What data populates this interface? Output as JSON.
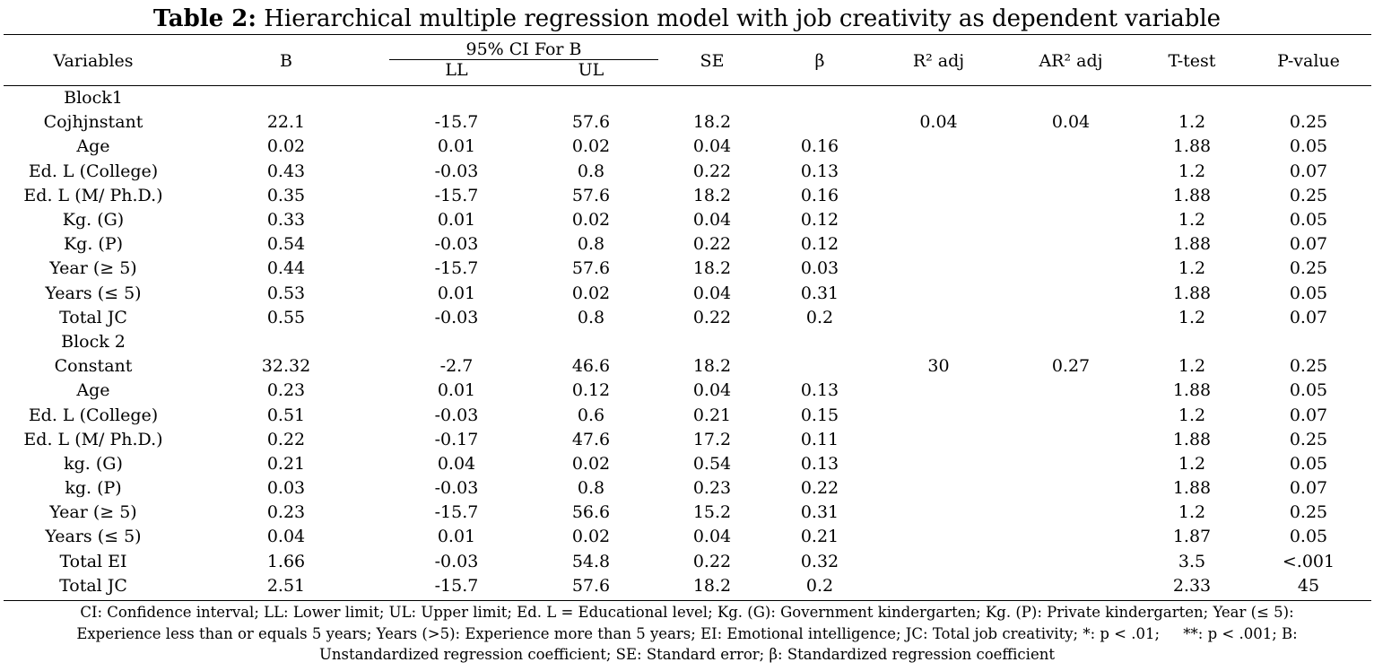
{
  "title": {
    "bold": "Table 2:",
    "rest": "Hierarchical multiple regression model with job creativity as dependent variable"
  },
  "header": {
    "variables": "Variables",
    "b": "B",
    "ci": "95% CI For B",
    "ll": "LL",
    "ul": "UL",
    "se": "SE",
    "beta": "β",
    "r2": "R² adj",
    "ar2": "AR² adj",
    "ttest": "T-test",
    "pvalue": "P-value"
  },
  "rows": [
    [
      "Block1",
      "",
      "",
      "",
      "",
      "",
      "",
      "",
      "",
      ""
    ],
    [
      "Cojhjnstant",
      "22.1",
      "-15.7",
      "57.6",
      "18.2",
      "",
      "0.04",
      "0.04",
      "1.2",
      "0.25"
    ],
    [
      "Age",
      "0.02",
      "0.01",
      "0.02",
      "0.04",
      "0.16",
      "",
      "",
      "1.88",
      "0.05"
    ],
    [
      "Ed. L (College)",
      "0.43",
      "-0.03",
      "0.8",
      "0.22",
      "0.13",
      "",
      "",
      "1.2",
      "0.07"
    ],
    [
      "Ed. L (M/ Ph.D.)",
      "0.35",
      "-15.7",
      "57.6",
      "18.2",
      "0.16",
      "",
      "",
      "1.88",
      "0.25"
    ],
    [
      "Kg. (G)",
      "0.33",
      "0.01",
      "0.02",
      "0.04",
      "0.12",
      "",
      "",
      "1.2",
      "0.05"
    ],
    [
      "Kg. (P)",
      "0.54",
      "-0.03",
      "0.8",
      "0.22",
      "0.12",
      "",
      "",
      "1.88",
      "0.07"
    ],
    [
      "Year (≥ 5)",
      "0.44",
      "-15.7",
      "57.6",
      "18.2",
      "0.03",
      "",
      "",
      "1.2",
      "0.25"
    ],
    [
      "Years (≤ 5)",
      "0.53",
      "0.01",
      "0.02",
      "0.04",
      "0.31",
      "",
      "",
      "1.88",
      "0.05"
    ],
    [
      "Total JC",
      "0.55",
      "-0.03",
      "0.8",
      "0.22",
      "0.2",
      "",
      "",
      "1.2",
      "0.07"
    ],
    [
      "Block 2",
      "",
      "",
      "",
      "",
      "",
      "",
      "",
      "",
      ""
    ],
    [
      "Constant",
      "32.32",
      "-2.7",
      "46.6",
      "18.2",
      "",
      "30",
      "0.27",
      "1.2",
      "0.25"
    ],
    [
      "Age",
      "0.23",
      "0.01",
      "0.12",
      "0.04",
      "0.13",
      "",
      "",
      "1.88",
      "0.05"
    ],
    [
      "Ed. L (College)",
      "0.51",
      "-0.03",
      "0.6",
      "0.21",
      "0.15",
      "",
      "",
      "1.2",
      "0.07"
    ],
    [
      "Ed. L (M/ Ph.D.)",
      "0.22",
      "-0.17",
      "47.6",
      "17.2",
      "0.11",
      "",
      "",
      "1.88",
      "0.25"
    ],
    [
      "kg. (G)",
      "0.21",
      "0.04",
      "0.02",
      "0.54",
      "0.13",
      "",
      "",
      "1.2",
      "0.05"
    ],
    [
      "kg. (P)",
      "0.03",
      "-0.03",
      "0.8",
      "0.23",
      "0.22",
      "",
      "",
      "1.88",
      "0.07"
    ],
    [
      "Year (≥ 5)",
      "0.23",
      "-15.7",
      "56.6",
      "15.2",
      "0.31",
      "",
      "",
      "1.2",
      "0.25"
    ],
    [
      "Years (≤ 5)",
      "0.04",
      "0.01",
      "0.02",
      "0.04",
      "0.21",
      "",
      "",
      "1.87",
      "0.05"
    ],
    [
      "Total EI",
      "1.66",
      "-0.03",
      "54.8",
      "0.22",
      "0.32",
      "",
      "",
      "3.5",
      "<.001"
    ],
    [
      "Total JC",
      "2.51",
      "-15.7",
      "57.6",
      "18.2",
      "0.2",
      "",
      "",
      "2.33",
      "45"
    ]
  ],
  "footnote": [
    "CI: Confidence interval; LL: Lower limit; UL: Upper limit; Ed. L = Educational level; Kg. (G): Government kindergarten; Kg. (P): Private kindergarten; Year (≤ 5):",
    "Experience less than or equals 5 years; Years (>5): Experience more than 5 years; EI: Emotional intelligence; JC: Total job creativity; *: p < .01;     **: p < .001; B:",
    "Unstandardized regression coefficient; SE: Standard error; β: Standardized regression coefficient"
  ]
}
